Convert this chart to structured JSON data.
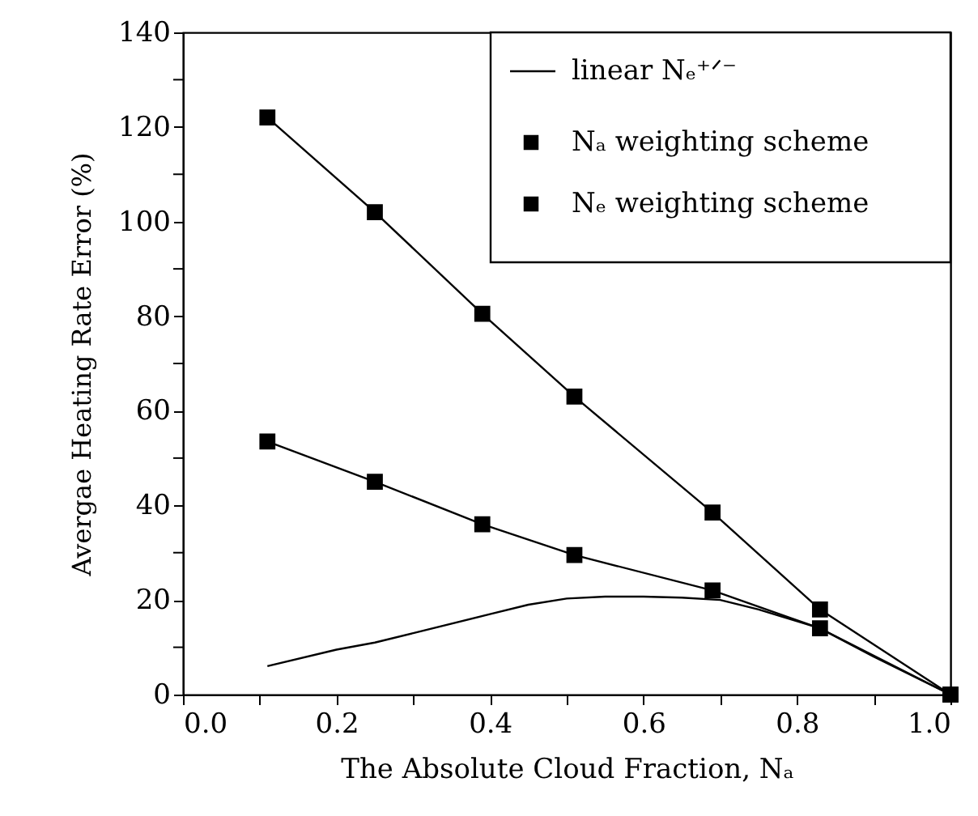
{
  "chart_data": {
    "type": "line",
    "xlabel": "The Absolute Cloud Fraction, Nₐ",
    "ylabel": "Avergae Heating Rate Error (%)",
    "xlim": [
      0.0,
      1.0
    ],
    "xticks": [
      {
        "value": 0.0,
        "label": "0.0"
      },
      {
        "value": 0.1,
        "label": null
      },
      {
        "value": 0.2,
        "label": "0.2"
      },
      {
        "value": 0.3,
        "label": null
      },
      {
        "value": 0.4,
        "label": "0.4"
      },
      {
        "value": 0.5,
        "label": null
      },
      {
        "value": 0.6,
        "label": "0.6"
      },
      {
        "value": 0.7,
        "label": null
      },
      {
        "value": 0.8,
        "label": "0.8"
      },
      {
        "value": 0.9,
        "label": null
      },
      {
        "value": 1.0,
        "label": "1.0"
      }
    ],
    "ylim": [
      0,
      140
    ],
    "yticks": [
      0,
      {
        "value": 10,
        "label": null
      },
      20,
      {
        "value": 30,
        "label": null
      },
      40,
      {
        "value": 50,
        "label": null
      },
      60,
      {
        "value": 70,
        "label": null
      },
      80,
      {
        "value": 90,
        "label": null
      },
      100,
      {
        "value": 110,
        "label": null
      },
      120,
      {
        "value": 130,
        "label": null
      },
      140
    ],
    "grid": false,
    "legend": "top right",
    "series": [
      {
        "name": "linear Nₑ⁺ᐟ⁻",
        "color": "#000000",
        "marker": "none",
        "x": [
          0.11,
          0.2,
          0.25,
          0.3,
          0.4,
          0.45,
          0.5,
          0.55,
          0.6,
          0.65,
          0.7,
          0.75,
          0.8,
          0.83,
          0.9,
          1.0
        ],
        "values": [
          6,
          9.5,
          11,
          13,
          17,
          19,
          20.3,
          20.7,
          20.7,
          20.5,
          20,
          18,
          15.5,
          14,
          8,
          0
        ]
      },
      {
        "name": "Nₐ weighting scheme",
        "color": "#000000",
        "marker": "square",
        "x": [
          0.11,
          0.25,
          0.39,
          0.51,
          0.69,
          0.83,
          1.0
        ],
        "values": [
          53.5,
          45,
          36,
          29.5,
          22,
          14,
          0
        ]
      },
      {
        "name": "Nₑ weighting scheme",
        "color": "#000000",
        "marker": "square",
        "x": [
          0.11,
          0.25,
          0.39,
          0.51,
          0.69,
          0.83,
          1.0
        ],
        "values": [
          122,
          102,
          80.5,
          63,
          38.5,
          18,
          0
        ]
      }
    ]
  }
}
